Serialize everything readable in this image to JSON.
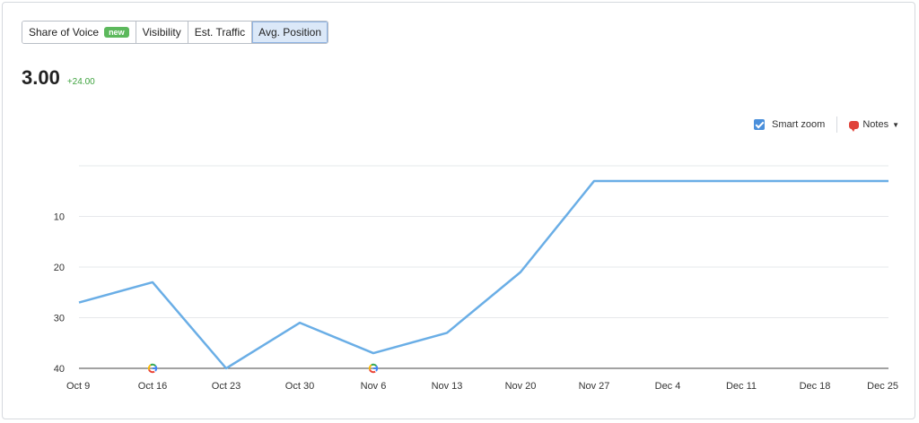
{
  "tabs": [
    {
      "label": "Share of Voice",
      "badge": "new",
      "active": false
    },
    {
      "label": "Visibility",
      "active": false
    },
    {
      "label": "Est. Traffic",
      "active": false
    },
    {
      "label": "Avg. Position",
      "active": true
    }
  ],
  "metric": {
    "value": "3.00",
    "delta": "+24.00"
  },
  "controls": {
    "smart_zoom_label": "Smart zoom",
    "smart_zoom_checked": true,
    "notes_label": "Notes"
  },
  "colors": {
    "line": "#6aaee6",
    "grid": "#e6e8eb",
    "axis": "#444444",
    "accent": "#4a8fdb",
    "delta": "#3fa33f"
  },
  "icons": {
    "google": "google-icon",
    "notes": "speech-bubble-icon"
  },
  "chart_data": {
    "type": "line",
    "y_inverted": true,
    "ylim": [
      0,
      40
    ],
    "yticks": [
      10,
      20,
      30,
      40
    ],
    "x": [
      "Oct 9",
      "Oct 16",
      "Oct 23",
      "Oct 30",
      "Nov 6",
      "Nov 13",
      "Nov 20",
      "Nov 27",
      "Dec 4",
      "Dec 11",
      "Dec 18",
      "Dec 25"
    ],
    "series": [
      {
        "values": [
          27,
          23,
          40,
          31,
          37,
          33,
          21,
          3,
          3,
          3,
          3,
          3
        ]
      }
    ],
    "markers": [
      {
        "x": "Oct 16",
        "icon": "google-icon"
      },
      {
        "x": "Nov 6",
        "icon": "google-icon"
      }
    ],
    "grid": true
  }
}
